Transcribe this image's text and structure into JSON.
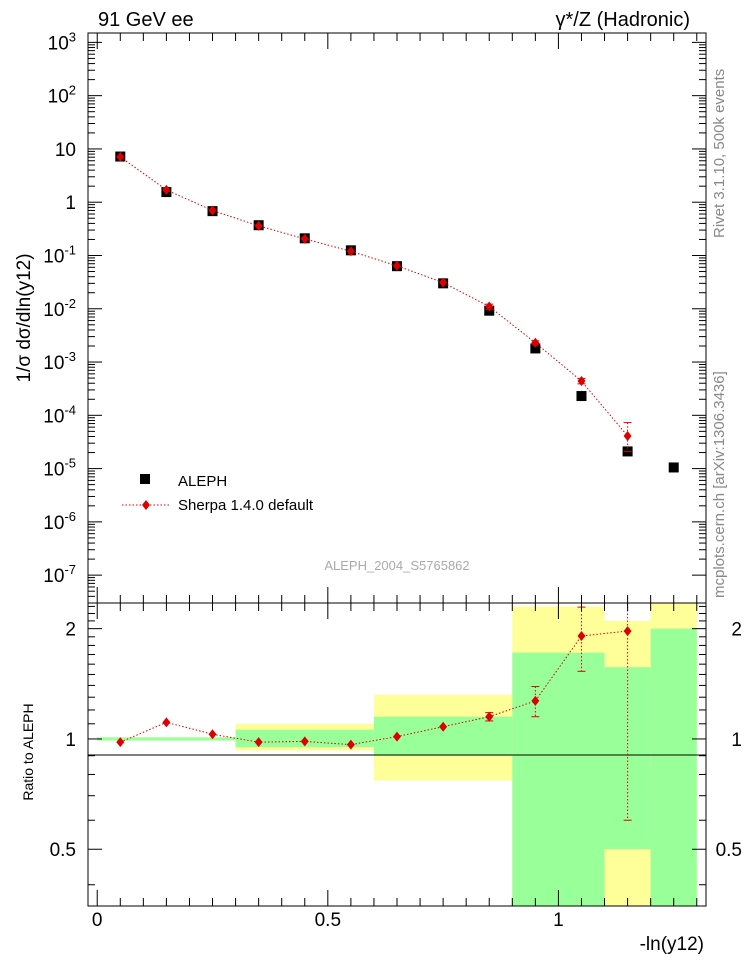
{
  "header": {
    "left": "91 GeV ee",
    "right": "γ*/Z (Hadronic)"
  },
  "side_labels": {
    "rivet": "Rivet 3.1.10,  500k events",
    "mcplots": "mcplots.cern.ch [arXiv:1306.3436]"
  },
  "analysis_tag": "ALEPH_2004_S5765862",
  "axes": {
    "ylabel_main": "1/σ  dσ/dln(y12)",
    "ylabel_ratio": "Ratio to ALEPH",
    "xlabel": "-ln(y12)"
  },
  "legend": {
    "data_label": "ALEPH",
    "mc_label": "Sherpa 1.4.0 default"
  },
  "colors": {
    "data": "#000000",
    "mc": "#dd0000",
    "band_inner": "#99ff99",
    "band_outer": "#ffff99"
  },
  "chart_data": [
    {
      "type": "scatter",
      "panel": "main",
      "log_y": true,
      "xlim": [
        -0.02,
        1.32
      ],
      "ylim": [
        3e-08,
        1500
      ],
      "y_tick_labels": [
        "10^-7",
        "10^-6",
        "10^-5",
        "10^-4",
        "10^-3",
        "10^-2",
        "10^-1",
        "1",
        "10",
        "10^2",
        "10^3"
      ],
      "series": [
        {
          "name": "ALEPH",
          "x": [
            0.05,
            0.15,
            0.25,
            0.35,
            0.45,
            0.55,
            0.65,
            0.75,
            0.85,
            0.95,
            1.05,
            1.15,
            1.25
          ],
          "y": [
            7.2,
            1.55,
            0.68,
            0.37,
            0.21,
            0.125,
            0.063,
            0.03,
            0.0092,
            0.0018,
            0.00023,
            2.1e-05,
            1.05e-05
          ]
        },
        {
          "name": "Sherpa 1.4.0 default",
          "x": [
            0.05,
            0.15,
            0.25,
            0.35,
            0.45,
            0.55,
            0.65,
            0.75,
            0.85,
            0.95,
            1.05,
            1.15
          ],
          "y": [
            7.1,
            1.7,
            0.7,
            0.36,
            0.205,
            0.12,
            0.064,
            0.031,
            0.011,
            0.0023,
            0.00044,
            4.1e-05
          ],
          "err_up": [
            0,
            0,
            0,
            0,
            0,
            0,
            0,
            0,
            0.0012,
            0.0002,
            5e-05,
            3.2e-05
          ],
          "err_down": [
            0,
            0,
            0,
            0,
            0,
            0,
            0,
            0,
            0.0012,
            0.0002,
            5e-05,
            2e-05
          ]
        }
      ]
    },
    {
      "type": "scatter",
      "panel": "ratio",
      "log_y": true,
      "xlim": [
        -0.02,
        1.32
      ],
      "ylim": [
        0.35,
        2.35
      ],
      "x_tick_labels": [
        "0",
        "0.5",
        "1"
      ],
      "y_tick_labels": [
        "0.5",
        "1",
        "2"
      ],
      "bands": [
        {
          "x0": 0.0,
          "x1": 0.3,
          "inner": [
            0.99,
            1.01
          ],
          "outer": [
            0.99,
            1.01
          ]
        },
        {
          "x0": 0.3,
          "x1": 0.6,
          "inner": [
            0.95,
            1.06
          ],
          "outer": [
            0.93,
            1.1
          ]
        },
        {
          "x0": 0.6,
          "x1": 0.9,
          "inner": [
            0.9,
            1.15
          ],
          "outer": [
            0.77,
            1.32
          ]
        },
        {
          "x0": 0.9,
          "x1": 1.1,
          "inner": [
            0.35,
            1.72
          ],
          "outer": [
            0.35,
            2.3
          ]
        },
        {
          "x0": 1.1,
          "x1": 1.2,
          "inner": [
            0.5,
            1.57
          ],
          "outer": [
            0.35,
            2.1
          ]
        },
        {
          "x0": 1.2,
          "x1": 1.3,
          "inner": [
            0.35,
            2.0
          ],
          "outer": [
            0.35,
            2.35
          ]
        }
      ],
      "series": [
        {
          "name": "Sherpa 1.4.0 default",
          "x": [
            0.05,
            0.15,
            0.25,
            0.35,
            0.45,
            0.55,
            0.65,
            0.75,
            0.85,
            0.95,
            1.05,
            1.15
          ],
          "y": [
            0.98,
            1.11,
            1.03,
            0.98,
            0.985,
            0.965,
            1.015,
            1.08,
            1.15,
            1.27,
            1.91,
            1.97
          ],
          "err_up": [
            0,
            0,
            0,
            0,
            0,
            0,
            0,
            0,
            0.03,
            0.12,
            0.38,
            0.5
          ],
          "err_down": [
            0,
            0,
            0,
            0,
            0,
            0,
            0,
            0,
            0.03,
            0.12,
            0.38,
            1.37
          ]
        }
      ]
    }
  ]
}
